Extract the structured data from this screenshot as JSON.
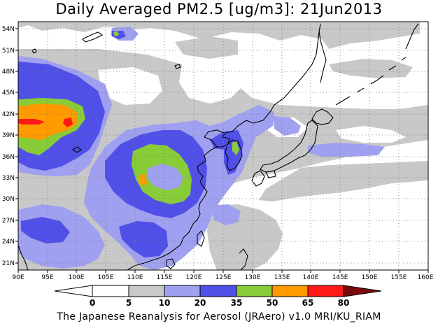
{
  "title": "Daily Averaged PM2.5 [ug/m3]: 21Jun2013",
  "footer": "The Japanese Reanalysis for Aerosol (JRAero) v1.0 MRI/KU_RIAM",
  "map": {
    "lon_range": [
      90,
      160
    ],
    "lat_range": [
      20,
      55
    ],
    "lon_ticks": [
      "90E",
      "95E",
      "100E",
      "105E",
      "110E",
      "115E",
      "120E",
      "125E",
      "130E",
      "135E",
      "140E",
      "145E",
      "150E",
      "155E",
      "160E"
    ],
    "lat_ticks": [
      "21N",
      "24N",
      "27N",
      "30N",
      "33N",
      "36N",
      "39N",
      "42N",
      "45N",
      "48N",
      "51N",
      "54N"
    ],
    "grid": "dotted"
  },
  "colorbar": {
    "labels": [
      "0",
      "5",
      "10",
      "20",
      "35",
      "50",
      "65",
      "80"
    ],
    "colors": {
      "below_0": "#ffffff",
      "0_5": "#ffffff",
      "5_10": "#c8c8c8",
      "10_20": "#a0a0f0",
      "20_35": "#5050e8",
      "35_50": "#88cc38",
      "50_65": "#ff9a00",
      "65_80": "#ff1a1a",
      "above_80": "#7a0a0a"
    }
  }
}
